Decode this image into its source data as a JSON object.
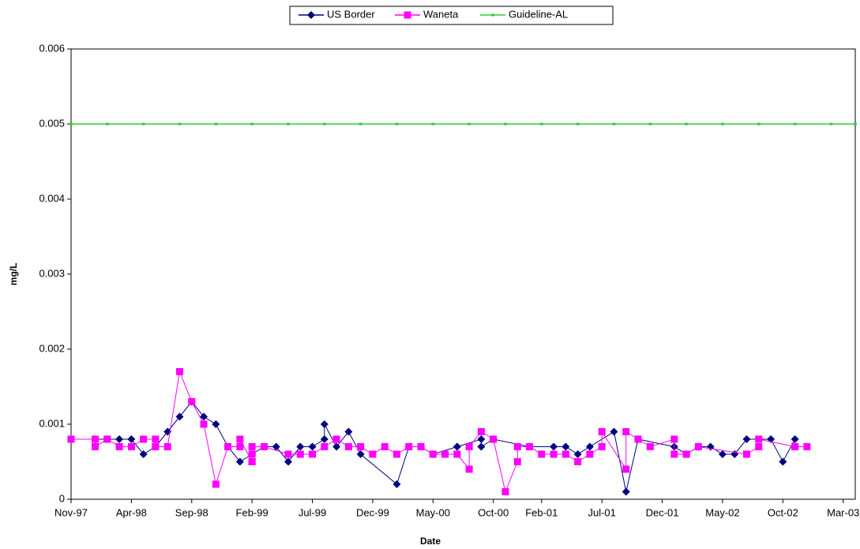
{
  "chart_data": {
    "type": "line",
    "x_label": "Date",
    "y_label": "mg/L",
    "xlim": [
      "1997-11",
      "2003-04"
    ],
    "xticks": [
      {
        "value": "1997-11",
        "label": "Nov-97"
      },
      {
        "value": "1998-04",
        "label": "Apr-98"
      },
      {
        "value": "1998-09",
        "label": "Sep-98"
      },
      {
        "value": "1999-02",
        "label": "Feb-99"
      },
      {
        "value": "1999-07",
        "label": "Jul-99"
      },
      {
        "value": "1999-12",
        "label": "Dec-99"
      },
      {
        "value": "2000-05",
        "label": "May-00"
      },
      {
        "value": "2000-10",
        "label": "Oct-00"
      },
      {
        "value": "2001-02",
        "label": "Feb-01"
      },
      {
        "value": "2001-07",
        "label": "Jul-01"
      },
      {
        "value": "2001-12",
        "label": "Dec-01"
      },
      {
        "value": "2002-05",
        "label": "May-02"
      },
      {
        "value": "2002-10",
        "label": "Oct-02"
      },
      {
        "value": "2003-03",
        "label": "Mar-03"
      }
    ],
    "ylim": [
      0,
      0.006
    ],
    "yticks": [
      0,
      0.001,
      0.002,
      0.003,
      0.004,
      0.005,
      0.006
    ],
    "legend": "top",
    "series": [
      {
        "name": "US Border",
        "color": "#000080",
        "marker": "diamond",
        "x": [
          "1997-11",
          "1998-01",
          "1998-02",
          "1998-03",
          "1998-04",
          "1998-05",
          "1998-06",
          "1998-07",
          "1998-08",
          "1998-09",
          "1998-10",
          "1998-11",
          "1998-12",
          "1999-01",
          "1999-02",
          "1999-02",
          "1999-03",
          "1999-04",
          "1999-05",
          "1999-06",
          "1999-07",
          "1999-08",
          "1999-08",
          "1999-09",
          "1999-10",
          "1999-11",
          "2000-02",
          "2000-03",
          "2000-04",
          "2000-05",
          "2000-07",
          "2000-07",
          "2000-09",
          "2000-09",
          "2000-10",
          "2001-01",
          "2001-03",
          "2001-04",
          "2001-05",
          "2001-06",
          "2001-08",
          "2001-09",
          "2001-10",
          "2002-01",
          "2002-02",
          "2002-03",
          "2002-04",
          "2002-05",
          "2002-06",
          "2002-07",
          "2002-09",
          "2002-10",
          "2002-11"
        ],
        "values": [
          0.0008,
          0.0008,
          0.0008,
          0.0008,
          0.0008,
          0.0006,
          0.0007,
          0.0009,
          0.0011,
          0.0013,
          0.0011,
          0.001,
          0.0007,
          0.0005,
          0.0006,
          0.0006,
          0.0007,
          0.0007,
          0.0005,
          0.0007,
          0.0007,
          0.0008,
          0.001,
          0.0007,
          0.0009,
          0.0006,
          0.0002,
          0.0007,
          0.0007,
          0.0006,
          0.0007,
          0.0007,
          0.0008,
          0.0007,
          0.0008,
          0.0007,
          0.0007,
          0.0007,
          0.0006,
          0.0007,
          0.0009,
          0.0001,
          0.0008,
          0.0007,
          0.0006,
          0.0007,
          0.0007,
          0.0006,
          0.0006,
          0.0008,
          0.0008,
          0.0005,
          0.0008
        ]
      },
      {
        "name": "Waneta",
        "color": "#ff00ff",
        "marker": "square",
        "x": [
          "1997-11",
          "1998-01",
          "1998-01",
          "1998-01",
          "1998-01",
          "1998-02",
          "1998-02",
          "1998-03",
          "1998-04",
          "1998-05",
          "1998-06",
          "1998-06",
          "1998-07",
          "1998-08",
          "1998-09",
          "1998-10",
          "1998-11",
          "1998-12",
          "1999-01",
          "1999-01",
          "1999-02",
          "1999-02",
          "1999-02",
          "1999-02",
          "1999-03",
          "1999-05",
          "1999-06",
          "1999-07",
          "1999-08",
          "1999-09",
          "1999-10",
          "1999-11",
          "1999-12",
          "2000-01",
          "2000-02",
          "2000-03",
          "2000-04",
          "2000-05",
          "2000-06",
          "2000-06",
          "2000-07",
          "2000-08",
          "2000-08",
          "2000-09",
          "2000-10",
          "2000-11",
          "2000-12",
          "2000-12",
          "2001-01",
          "2001-02",
          "2001-03",
          "2001-04",
          "2001-05",
          "2001-06",
          "2001-07",
          "2001-07",
          "2001-09",
          "2001-09",
          "2001-10",
          "2001-11",
          "2002-01",
          "2002-01",
          "2002-02",
          "2002-02",
          "2002-03",
          "2002-07",
          "2002-08",
          "2002-08",
          "2002-11",
          "2002-11",
          "2002-12"
        ],
        "values": [
          0.0008,
          0.0008,
          0.0007,
          0.0008,
          0.0007,
          0.0008,
          0.0008,
          0.0007,
          0.0007,
          0.0008,
          0.0008,
          0.0007,
          0.0007,
          0.0017,
          0.0013,
          0.001,
          0.0002,
          0.0007,
          0.0007,
          0.0008,
          0.0005,
          0.0005,
          0.0006,
          0.0007,
          0.0007,
          0.0006,
          0.0006,
          0.0006,
          0.0007,
          0.0008,
          0.0007,
          0.0007,
          0.0006,
          0.0007,
          0.0006,
          0.0007,
          0.0007,
          0.0006,
          0.0006,
          0.0006,
          0.0006,
          0.0004,
          0.0007,
          0.0009,
          0.0008,
          0.0001,
          0.0005,
          0.0007,
          0.0007,
          0.0006,
          0.0006,
          0.0006,
          0.0005,
          0.0006,
          0.0007,
          0.0009,
          0.0004,
          0.0009,
          0.0008,
          0.0007,
          0.0008,
          0.0006,
          0.0006,
          0.0006,
          0.0007,
          0.0006,
          0.0007,
          0.0008,
          0.0007,
          0.0007,
          0.0007
        ]
      },
      {
        "name": "Guideline-AL",
        "color": "#33cc33",
        "marker": "dot",
        "x": [
          "1997-11",
          "1998-02",
          "1998-05",
          "1998-08",
          "1998-11",
          "1999-02",
          "1999-05",
          "1999-08",
          "1999-11",
          "2000-02",
          "2000-05",
          "2000-08",
          "2000-11",
          "2001-02",
          "2001-05",
          "2001-08",
          "2001-11",
          "2002-02",
          "2002-05",
          "2002-08",
          "2002-11",
          "2003-02",
          "2003-04"
        ],
        "values": [
          0.005,
          0.005,
          0.005,
          0.005,
          0.005,
          0.005,
          0.005,
          0.005,
          0.005,
          0.005,
          0.005,
          0.005,
          0.005,
          0.005,
          0.005,
          0.005,
          0.005,
          0.005,
          0.005,
          0.005,
          0.005,
          0.005,
          0.005
        ]
      }
    ]
  }
}
